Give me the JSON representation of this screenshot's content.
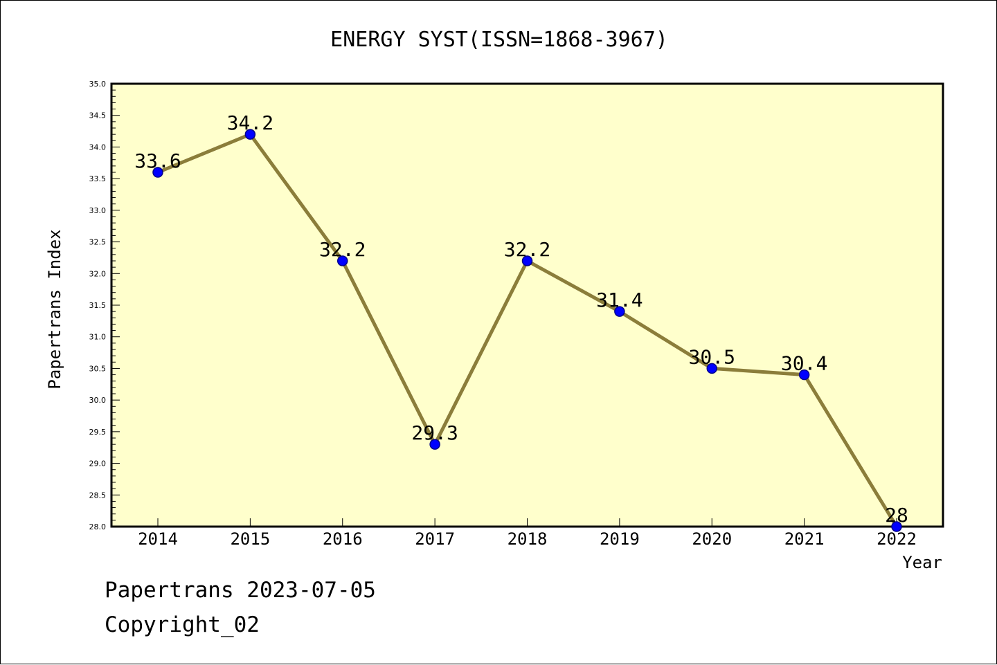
{
  "chart_data": {
    "type": "line",
    "title": "ENERGY SYST(ISSN=1868-3967)",
    "xlabel": "Year",
    "ylabel": "Papertrans Index",
    "categories": [
      "2014",
      "2015",
      "2016",
      "2017",
      "2018",
      "2019",
      "2020",
      "2021",
      "2022"
    ],
    "values": [
      33.6,
      34.2,
      32.2,
      29.3,
      32.2,
      31.4,
      30.5,
      30.4,
      28
    ],
    "value_labels": [
      "33.6",
      "34.2",
      "32.2",
      "29.3",
      "32.2",
      "31.4",
      "30.5",
      "30.4",
      "28"
    ],
    "ylim": [
      28.0,
      35.0
    ],
    "y_ticks": [
      "28.0",
      "28.5",
      "29.0",
      "29.5",
      "30.0",
      "30.5",
      "31.0",
      "31.5",
      "32.0",
      "32.5",
      "33.0",
      "33.5",
      "34.0",
      "34.5",
      "35.0"
    ],
    "grid": false,
    "colors": {
      "plot_background": "#ffffcc",
      "line": "#8b7d3a",
      "marker_fill": "#0000ff",
      "marker_stroke": "#00008b"
    }
  },
  "footer": {
    "line1": "Papertrans 2023-07-05",
    "line2": "Copyright_02"
  }
}
